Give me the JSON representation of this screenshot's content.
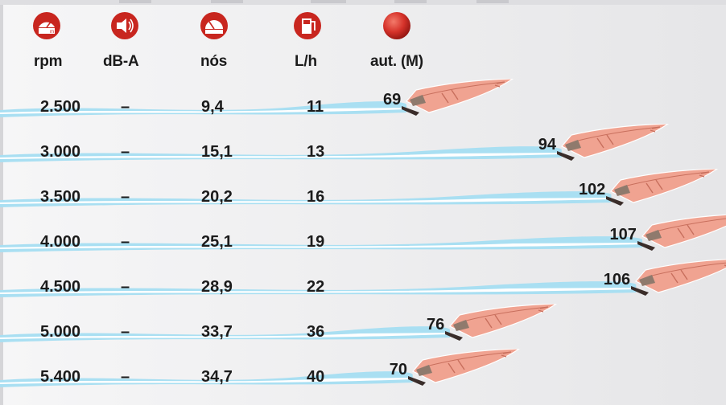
{
  "chart_data": {
    "type": "table",
    "columns": [
      {
        "key": "rpm",
        "label": "rpm",
        "icon": "tachometer-icon"
      },
      {
        "key": "dba",
        "label": "dB-A",
        "icon": "speaker-icon"
      },
      {
        "key": "knots",
        "label": "nós",
        "icon": "speedometer-icon"
      },
      {
        "key": "lph",
        "label": "L/h",
        "icon": "fuel-pump-icon"
      },
      {
        "key": "range",
        "label": "aut. (M)",
        "icon": "range-ball-icon"
      }
    ],
    "rows": [
      {
        "rpm": "2.500",
        "dba": "–",
        "knots": "9,4",
        "lph": "11",
        "range": "69"
      },
      {
        "rpm": "3.000",
        "dba": "–",
        "knots": "15,1",
        "lph": "13",
        "range": "94"
      },
      {
        "rpm": "3.500",
        "dba": "–",
        "knots": "20,2",
        "lph": "16",
        "range": "102"
      },
      {
        "rpm": "4.000",
        "dba": "–",
        "knots": "25,1",
        "lph": "19",
        "range": "107"
      },
      {
        "rpm": "4.500",
        "dba": "–",
        "knots": "28,9",
        "lph": "22",
        "range": "106"
      },
      {
        "rpm": "5.000",
        "dba": "–",
        "knots": "33,7",
        "lph": "36",
        "range": "76"
      },
      {
        "rpm": "5.400",
        "dba": "–",
        "knots": "34,7",
        "lph": "40",
        "range": "70"
      }
    ],
    "colors": {
      "icon": "#c8261f",
      "boat": "#f0a391",
      "wake": "#a9dff2",
      "text": "#1b1b1b"
    }
  }
}
